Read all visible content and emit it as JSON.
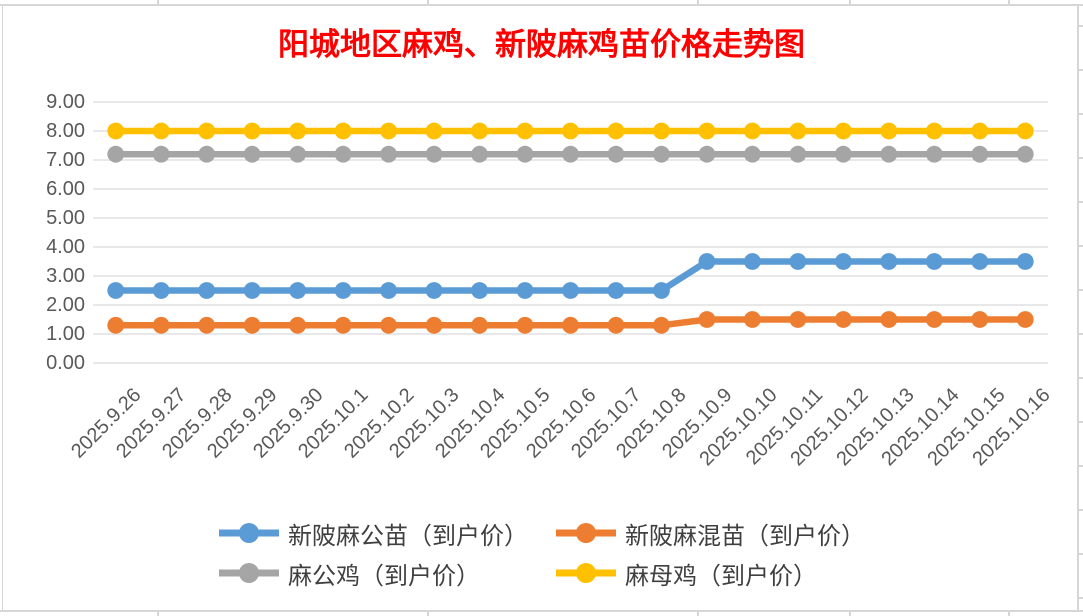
{
  "chart": {
    "title": "阳城地区麻鸡、新陂麻鸡苗价格走势图",
    "title_color": "#FF0000"
  },
  "chart_data": {
    "type": "line",
    "title": "阳城地区麻鸡、新陂麻鸡苗价格走势图",
    "categories": [
      "2025.9.26",
      "2025.9.27",
      "2025.9.28",
      "2025.9.29",
      "2025.9.30",
      "2025.10.1",
      "2025.10.2",
      "2025.10.3",
      "2025.10.4",
      "2025.10.5",
      "2025.10.6",
      "2025.10.7",
      "2025.10.8",
      "2025.10.9",
      "2025.10.10",
      "2025.10.11",
      "2025.10.12",
      "2025.10.13",
      "2025.10.14",
      "2025.10.15",
      "2025.10.16"
    ],
    "series": [
      {
        "name": "新陂麻公苗（到户价）",
        "color": "#5B9BD5",
        "values": [
          2.5,
          2.5,
          2.5,
          2.5,
          2.5,
          2.5,
          2.5,
          2.5,
          2.5,
          2.5,
          2.5,
          2.5,
          2.5,
          3.5,
          3.5,
          3.5,
          3.5,
          3.5,
          3.5,
          3.5,
          3.5
        ]
      },
      {
        "name": "新陂麻混苗（到户价）",
        "color": "#ED7D31",
        "values": [
          1.3,
          1.3,
          1.3,
          1.3,
          1.3,
          1.3,
          1.3,
          1.3,
          1.3,
          1.3,
          1.3,
          1.3,
          1.3,
          1.5,
          1.5,
          1.5,
          1.5,
          1.5,
          1.5,
          1.5,
          1.5
        ]
      },
      {
        "name": "麻公鸡（到户价）",
        "color": "#A5A5A5",
        "values": [
          7.2,
          7.2,
          7.2,
          7.2,
          7.2,
          7.2,
          7.2,
          7.2,
          7.2,
          7.2,
          7.2,
          7.2,
          7.2,
          7.2,
          7.2,
          7.2,
          7.2,
          7.2,
          7.2,
          7.2,
          7.2
        ]
      },
      {
        "name": "麻母鸡（到户价）",
        "color": "#FFC000",
        "values": [
          8,
          8,
          8,
          8,
          8,
          8,
          8,
          8,
          8,
          8,
          8,
          8,
          8,
          8,
          8,
          8,
          8,
          8,
          8,
          8,
          8
        ]
      }
    ],
    "xlabel": "",
    "ylabel": "",
    "ylim": [
      0,
      9
    ],
    "y_tick_labels": [
      "0.00",
      "1.00",
      "2.00",
      "3.00",
      "4.00",
      "5.00",
      "6.00",
      "7.00",
      "8.00",
      "9.00"
    ],
    "grid": true,
    "gridline_color": "#D9D9D9",
    "legend_position": "bottom"
  }
}
